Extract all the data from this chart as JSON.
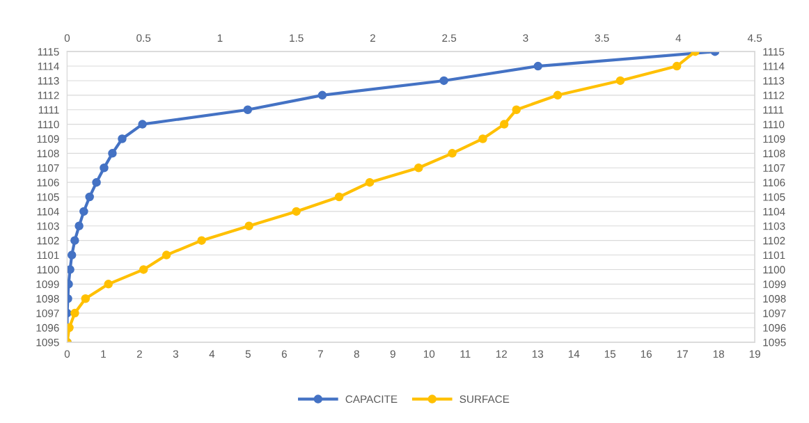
{
  "chart_data": {
    "type": "line",
    "series": [
      {
        "name": "CAPACITE",
        "color": "#4472c4",
        "x": [
          0,
          0,
          0,
          0.02,
          0.04,
          0.08,
          0.13,
          0.21,
          0.33,
          0.46,
          0.62,
          0.81,
          1.02,
          1.25,
          1.52,
          2.08,
          4.99,
          7.05,
          10.41,
          13.01,
          17.9
        ],
        "values": [
          1095,
          1096,
          1097,
          1098,
          1099,
          1100,
          1101,
          1102,
          1103,
          1104,
          1105,
          1106,
          1107,
          1108,
          1109,
          1110,
          1111,
          1112,
          1113,
          1114,
          1115
        ]
      },
      {
        "name": "SURFACE",
        "color": "#ffc000",
        "axis": "x2",
        "x": [
          0,
          0.014,
          0.05,
          0.12,
          0.27,
          0.5,
          0.65,
          0.88,
          1.19,
          1.5,
          1.78,
          1.98,
          2.3,
          2.52,
          2.72,
          2.86,
          2.94,
          3.21,
          3.62,
          3.99,
          4.11
        ],
        "values": [
          1095,
          1096,
          1097,
          1098,
          1099,
          1100,
          1101,
          1102,
          1103,
          1104,
          1105,
          1106,
          1107,
          1108,
          1109,
          1110,
          1111,
          1112,
          1113,
          1114,
          1115
        ]
      }
    ],
    "xlim": [
      0,
      19
    ],
    "xticks": [
      0,
      1,
      2,
      3,
      4,
      5,
      6,
      7,
      8,
      9,
      10,
      11,
      12,
      13,
      14,
      15,
      16,
      17,
      18,
      19
    ],
    "x2lim": [
      0,
      4.5
    ],
    "x2ticks": [
      0,
      0.5,
      1,
      1.5,
      2,
      2.5,
      3,
      3.5,
      4,
      4.5
    ],
    "ylim": [
      1095,
      1115
    ],
    "yticks": [
      1095,
      1096,
      1097,
      1098,
      1099,
      1100,
      1101,
      1102,
      1103,
      1104,
      1105,
      1106,
      1107,
      1108,
      1109,
      1110,
      1111,
      1112,
      1113,
      1114,
      1115
    ],
    "y2lim": [
      1095,
      1115
    ],
    "y2ticks": [
      1095,
      1096,
      1097,
      1098,
      1099,
      1100,
      1101,
      1102,
      1103,
      1104,
      1105,
      1106,
      1107,
      1108,
      1109,
      1110,
      1111,
      1112,
      1113,
      1114,
      1115
    ],
    "grid": "y",
    "legend": "bottom",
    "marker": "circle",
    "line_style": "solid"
  }
}
